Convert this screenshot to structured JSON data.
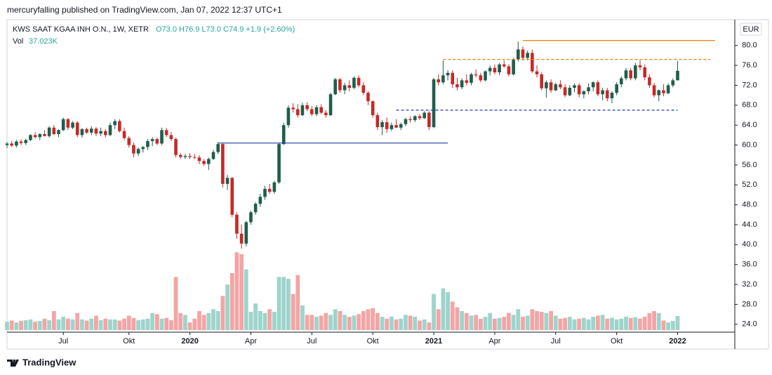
{
  "header": {
    "publisher_line": "mercuryfalling published on TradingView.com, Jan 07, 2022 12:37 UTC+1"
  },
  "legend": {
    "symbol": "KWS SAAT KGAA INH O.N., 1W, XETR",
    "ohlc": "O73.0 H76.9 L73.0 C74.9 +1.9 (+2.60%)",
    "volume_label": "Vol",
    "volume_value": "37.023K"
  },
  "currency": "EUR",
  "footer": {
    "brand": "TradingView"
  },
  "chart_data": {
    "type": "candlestick",
    "up_color": "#1d5e4c",
    "down_color": "#c62828",
    "volume_up_color": "#9dd4cb",
    "volume_down_color": "#f3a5a5",
    "xlim": [
      -1.5,
      155.2
    ],
    "ylim": [
      22.7,
      84.9
    ],
    "yticks": [
      {
        "value": 24,
        "label": "24.0"
      },
      {
        "value": 28,
        "label": "28.0"
      },
      {
        "value": 32,
        "label": "32.0"
      },
      {
        "value": 36,
        "label": "36.0"
      },
      {
        "value": 40,
        "label": "40.0"
      },
      {
        "value": 44,
        "label": "44.0"
      },
      {
        "value": 48,
        "label": "48.0"
      },
      {
        "value": 52,
        "label": "52.0"
      },
      {
        "value": 56,
        "label": "56.0"
      },
      {
        "value": 60,
        "label": "60.0"
      },
      {
        "value": 64,
        "label": "64.0"
      },
      {
        "value": 68,
        "label": "68.0"
      },
      {
        "value": 72,
        "label": "72.0"
      },
      {
        "value": 76,
        "label": "76.0"
      },
      {
        "value": 80,
        "label": "80.0"
      }
    ],
    "xticks": [
      {
        "value": 12,
        "label": "Jul"
      },
      {
        "value": 26,
        "label": "Okt"
      },
      {
        "value": 39,
        "label": "2020"
      },
      {
        "value": 52,
        "label": "Apr"
      },
      {
        "value": 65,
        "label": "Jul"
      },
      {
        "value": 78,
        "label": "Okt"
      },
      {
        "value": 91,
        "label": "2021"
      },
      {
        "value": 104,
        "label": "Apr"
      },
      {
        "value": 117,
        "label": "Jul"
      },
      {
        "value": 130,
        "label": "Okt"
      },
      {
        "value": 143,
        "label": "2022"
      }
    ],
    "grid": false,
    "open": [
      60.0,
      60.3,
      59.9,
      60.7,
      60.4,
      61.0,
      62.0,
      61.6,
      62.2,
      61.8,
      63.5,
      62.2,
      63.0,
      65.2,
      63.5,
      64.5,
      62.0,
      63.2,
      62.5,
      63.3,
      62.3,
      62.8,
      62.0,
      64.0,
      64.8,
      62.8,
      61.4,
      60.0,
      58.3,
      59.2,
      59.6,
      60.8,
      61.2,
      60.3,
      63.0,
      62.0,
      61.2,
      58.0,
      57.6,
      57.8,
      57.6,
      57.5,
      56.8,
      56.2,
      57.2,
      58.6,
      60.2,
      52.2,
      53.4,
      46.0,
      42.2,
      40.2,
      44.5,
      46.5,
      48.2,
      49.6,
      51.2,
      50.6,
      52.5,
      60.2,
      64.0,
      67.5,
      67.2,
      66.0,
      68.0,
      67.2,
      66.2,
      67.6,
      66.5,
      66.0,
      70.2,
      73.2,
      71.0,
      72.0,
      71.5,
      73.5,
      72.0,
      70.5,
      68.8,
      66.0,
      63.6,
      64.6,
      63.2,
      64.0,
      63.5,
      64.2,
      65.2,
      65.0,
      65.8,
      65.4,
      66.5,
      63.6,
      73.2,
      72.6,
      74.0,
      74.5,
      72.2,
      71.6,
      73.0,
      72.5,
      74.2,
      74.0,
      73.0,
      74.8,
      75.5,
      74.6,
      76.2,
      75.8,
      74.2,
      77.2,
      79.2,
      77.5,
      78.5,
      74.8,
      74.2,
      71.4,
      72.6,
      71.0,
      72.2,
      71.6,
      70.0,
      71.5,
      72.0,
      70.2,
      70.8,
      71.6,
      72.6,
      70.2,
      71.0,
      69.4,
      70.5,
      72.2,
      73.4,
      75.0,
      73.4,
      76.0,
      75.6,
      73.6,
      72.0,
      70.0,
      71.0,
      70.4,
      72.0,
      73.0
    ],
    "high": [
      60.6,
      60.8,
      61.0,
      61.2,
      61.3,
      62.2,
      62.6,
      62.4,
      63.0,
      63.8,
      64.0,
      63.2,
      65.5,
      65.4,
      64.8,
      64.8,
      63.4,
      63.5,
      63.8,
      63.6,
      63.5,
      63.2,
      64.5,
      65.2,
      65.2,
      63.5,
      61.8,
      60.5,
      59.5,
      59.8,
      61.2,
      61.6,
      61.5,
      63.5,
      63.4,
      62.6,
      61.5,
      58.4,
      58.2,
      58.4,
      58.2,
      58.0,
      57.2,
      57.5,
      59.0,
      60.6,
      60.3,
      54.0,
      53.6,
      46.5,
      44.0,
      44.8,
      46.8,
      48.5,
      50.2,
      51.8,
      52.2,
      52.8,
      60.5,
      64.5,
      68.0,
      68.4,
      68.2,
      68.5,
      68.6,
      67.8,
      68.0,
      68.2,
      67.0,
      70.5,
      73.5,
      73.5,
      72.5,
      73.0,
      73.8,
      74.0,
      72.6,
      70.8,
      69.0,
      66.5,
      65.0,
      65.5,
      64.5,
      65.2,
      64.5,
      65.5,
      65.8,
      66.0,
      66.2,
      66.8,
      66.8,
      73.5,
      74.2,
      77.0,
      75.0,
      75.0,
      73.5,
      73.4,
      74.2,
      74.5,
      75.2,
      74.5,
      75.0,
      76.0,
      76.2,
      76.5,
      77.0,
      76.2,
      77.5,
      80.8,
      79.8,
      79.0,
      79.2,
      76.0,
      74.6,
      73.0,
      73.2,
      72.5,
      73.0,
      72.2,
      72.0,
      72.4,
      72.4,
      71.0,
      72.4,
      72.8,
      73.0,
      71.5,
      71.5,
      70.8,
      72.6,
      73.8,
      75.5,
      75.5,
      76.5,
      77.0,
      76.2,
      74.2,
      72.5,
      71.2,
      72.2,
      72.4,
      73.4,
      76.9
    ],
    "low": [
      59.4,
      59.6,
      59.5,
      60.0,
      60.0,
      60.8,
      61.3,
      61.0,
      61.8,
      61.5,
      62.0,
      61.6,
      62.8,
      63.0,
      63.2,
      61.6,
      61.5,
      62.2,
      62.0,
      61.8,
      61.8,
      61.5,
      61.8,
      63.2,
      62.5,
      61.0,
      59.5,
      57.5,
      57.8,
      58.5,
      59.0,
      59.8,
      60.0,
      60.0,
      61.6,
      60.8,
      57.5,
      57.2,
      57.2,
      57.2,
      57.2,
      56.2,
      55.8,
      55.0,
      57.0,
      58.2,
      51.5,
      51.0,
      45.5,
      41.2,
      39.2,
      39.6,
      44.0,
      46.0,
      47.6,
      49.0,
      50.2,
      50.2,
      52.2,
      60.0,
      63.5,
      66.5,
      65.5,
      65.8,
      66.8,
      65.8,
      65.8,
      66.2,
      65.5,
      65.8,
      70.0,
      70.5,
      70.2,
      70.8,
      71.2,
      71.6,
      70.0,
      68.0,
      65.5,
      63.0,
      62.0,
      62.5,
      62.8,
      63.4,
      63.0,
      63.8,
      64.5,
      64.6,
      65.0,
      65.2,
      63.0,
      63.4,
      72.0,
      72.2,
      73.0,
      71.5,
      71.0,
      71.2,
      72.0,
      72.0,
      73.6,
      72.6,
      72.8,
      74.0,
      74.2,
      74.0,
      75.5,
      73.8,
      74.0,
      76.8,
      77.0,
      77.0,
      74.5,
      73.6,
      71.0,
      69.5,
      70.5,
      70.8,
      71.2,
      69.6,
      69.8,
      70.6,
      69.6,
      69.4,
      70.2,
      70.8,
      69.8,
      69.0,
      68.8,
      68.4,
      70.0,
      71.6,
      73.0,
      73.0,
      73.0,
      75.0,
      73.0,
      71.5,
      69.6,
      68.8,
      69.8,
      70.2,
      71.6,
      73.0
    ],
    "close": [
      60.3,
      59.9,
      60.7,
      60.4,
      61.0,
      62.0,
      61.6,
      62.2,
      61.8,
      63.5,
      62.2,
      63.0,
      65.2,
      63.5,
      64.5,
      62.0,
      63.2,
      62.5,
      63.3,
      62.3,
      62.8,
      62.0,
      64.0,
      64.8,
      62.8,
      61.4,
      60.0,
      58.3,
      59.2,
      59.6,
      60.8,
      61.2,
      60.3,
      63.0,
      62.0,
      61.2,
      58.0,
      57.6,
      57.8,
      57.6,
      57.5,
      56.8,
      56.2,
      57.2,
      58.6,
      60.2,
      52.2,
      53.4,
      46.0,
      42.2,
      40.2,
      44.5,
      46.5,
      48.2,
      49.6,
      51.2,
      50.6,
      52.5,
      60.2,
      64.0,
      67.5,
      67.2,
      66.0,
      68.0,
      67.2,
      66.2,
      67.6,
      66.5,
      66.0,
      70.2,
      73.2,
      71.0,
      72.0,
      71.5,
      73.5,
      72.0,
      70.5,
      68.8,
      66.0,
      63.6,
      64.6,
      63.2,
      64.0,
      63.5,
      64.2,
      65.2,
      65.0,
      65.8,
      65.4,
      66.5,
      63.6,
      73.2,
      72.6,
      74.0,
      74.5,
      72.2,
      71.6,
      73.0,
      72.5,
      74.2,
      74.0,
      73.0,
      74.8,
      75.5,
      74.6,
      76.2,
      75.8,
      74.2,
      77.2,
      79.2,
      77.5,
      78.5,
      74.8,
      74.2,
      71.4,
      72.6,
      71.0,
      72.2,
      71.6,
      70.0,
      71.5,
      72.0,
      70.2,
      70.8,
      71.6,
      72.6,
      70.2,
      71.0,
      69.4,
      70.5,
      72.2,
      73.4,
      75.0,
      73.4,
      76.0,
      75.6,
      73.6,
      72.0,
      70.0,
      71.0,
      70.4,
      72.0,
      73.0,
      74.9
    ],
    "volume": [
      22,
      25,
      20,
      24,
      26,
      28,
      22,
      24,
      30,
      26,
      50,
      28,
      35,
      30,
      28,
      45,
      28,
      25,
      30,
      38,
      26,
      30,
      28,
      28,
      25,
      30,
      38,
      32,
      26,
      28,
      30,
      45,
      42,
      30,
      32,
      26,
      140,
      45,
      40,
      20,
      30,
      50,
      40,
      45,
      55,
      50,
      90,
      120,
      150,
      205,
      200,
      160,
      48,
      70,
      50,
      45,
      55,
      48,
      140,
      140,
      135,
      95,
      145,
      65,
      40,
      40,
      35,
      38,
      45,
      40,
      55,
      50,
      40,
      35,
      38,
      42,
      50,
      55,
      58,
      45,
      35,
      30,
      35,
      28,
      30,
      40,
      38,
      35,
      25,
      28,
      20,
      95,
      55,
      110,
      100,
      75,
      60,
      50,
      45,
      38,
      40,
      30,
      35,
      45,
      30,
      32,
      35,
      45,
      40,
      55,
      35,
      38,
      55,
      50,
      48,
      45,
      50,
      38,
      30,
      32,
      35,
      28,
      30,
      32,
      28,
      35,
      38,
      40,
      30,
      32,
      28,
      30,
      35,
      32,
      34,
      30,
      35,
      45,
      50,
      45,
      25,
      20,
      24,
      37.023
    ],
    "horizontal_lines": [
      {
        "value": 81,
        "from": 110,
        "to": 151,
        "color": "#f57c00",
        "style": "solid"
      },
      {
        "value": 77.2,
        "from": 93,
        "to": 150,
        "color": "#f57c00",
        "style": "dashed"
      },
      {
        "value": 67,
        "from": 83,
        "to": 143,
        "color": "#1e3ca8",
        "style": "dashed"
      },
      {
        "value": 60.4,
        "from": 45,
        "to": 94,
        "color": "#1e3ca8",
        "style": "solid"
      }
    ]
  }
}
